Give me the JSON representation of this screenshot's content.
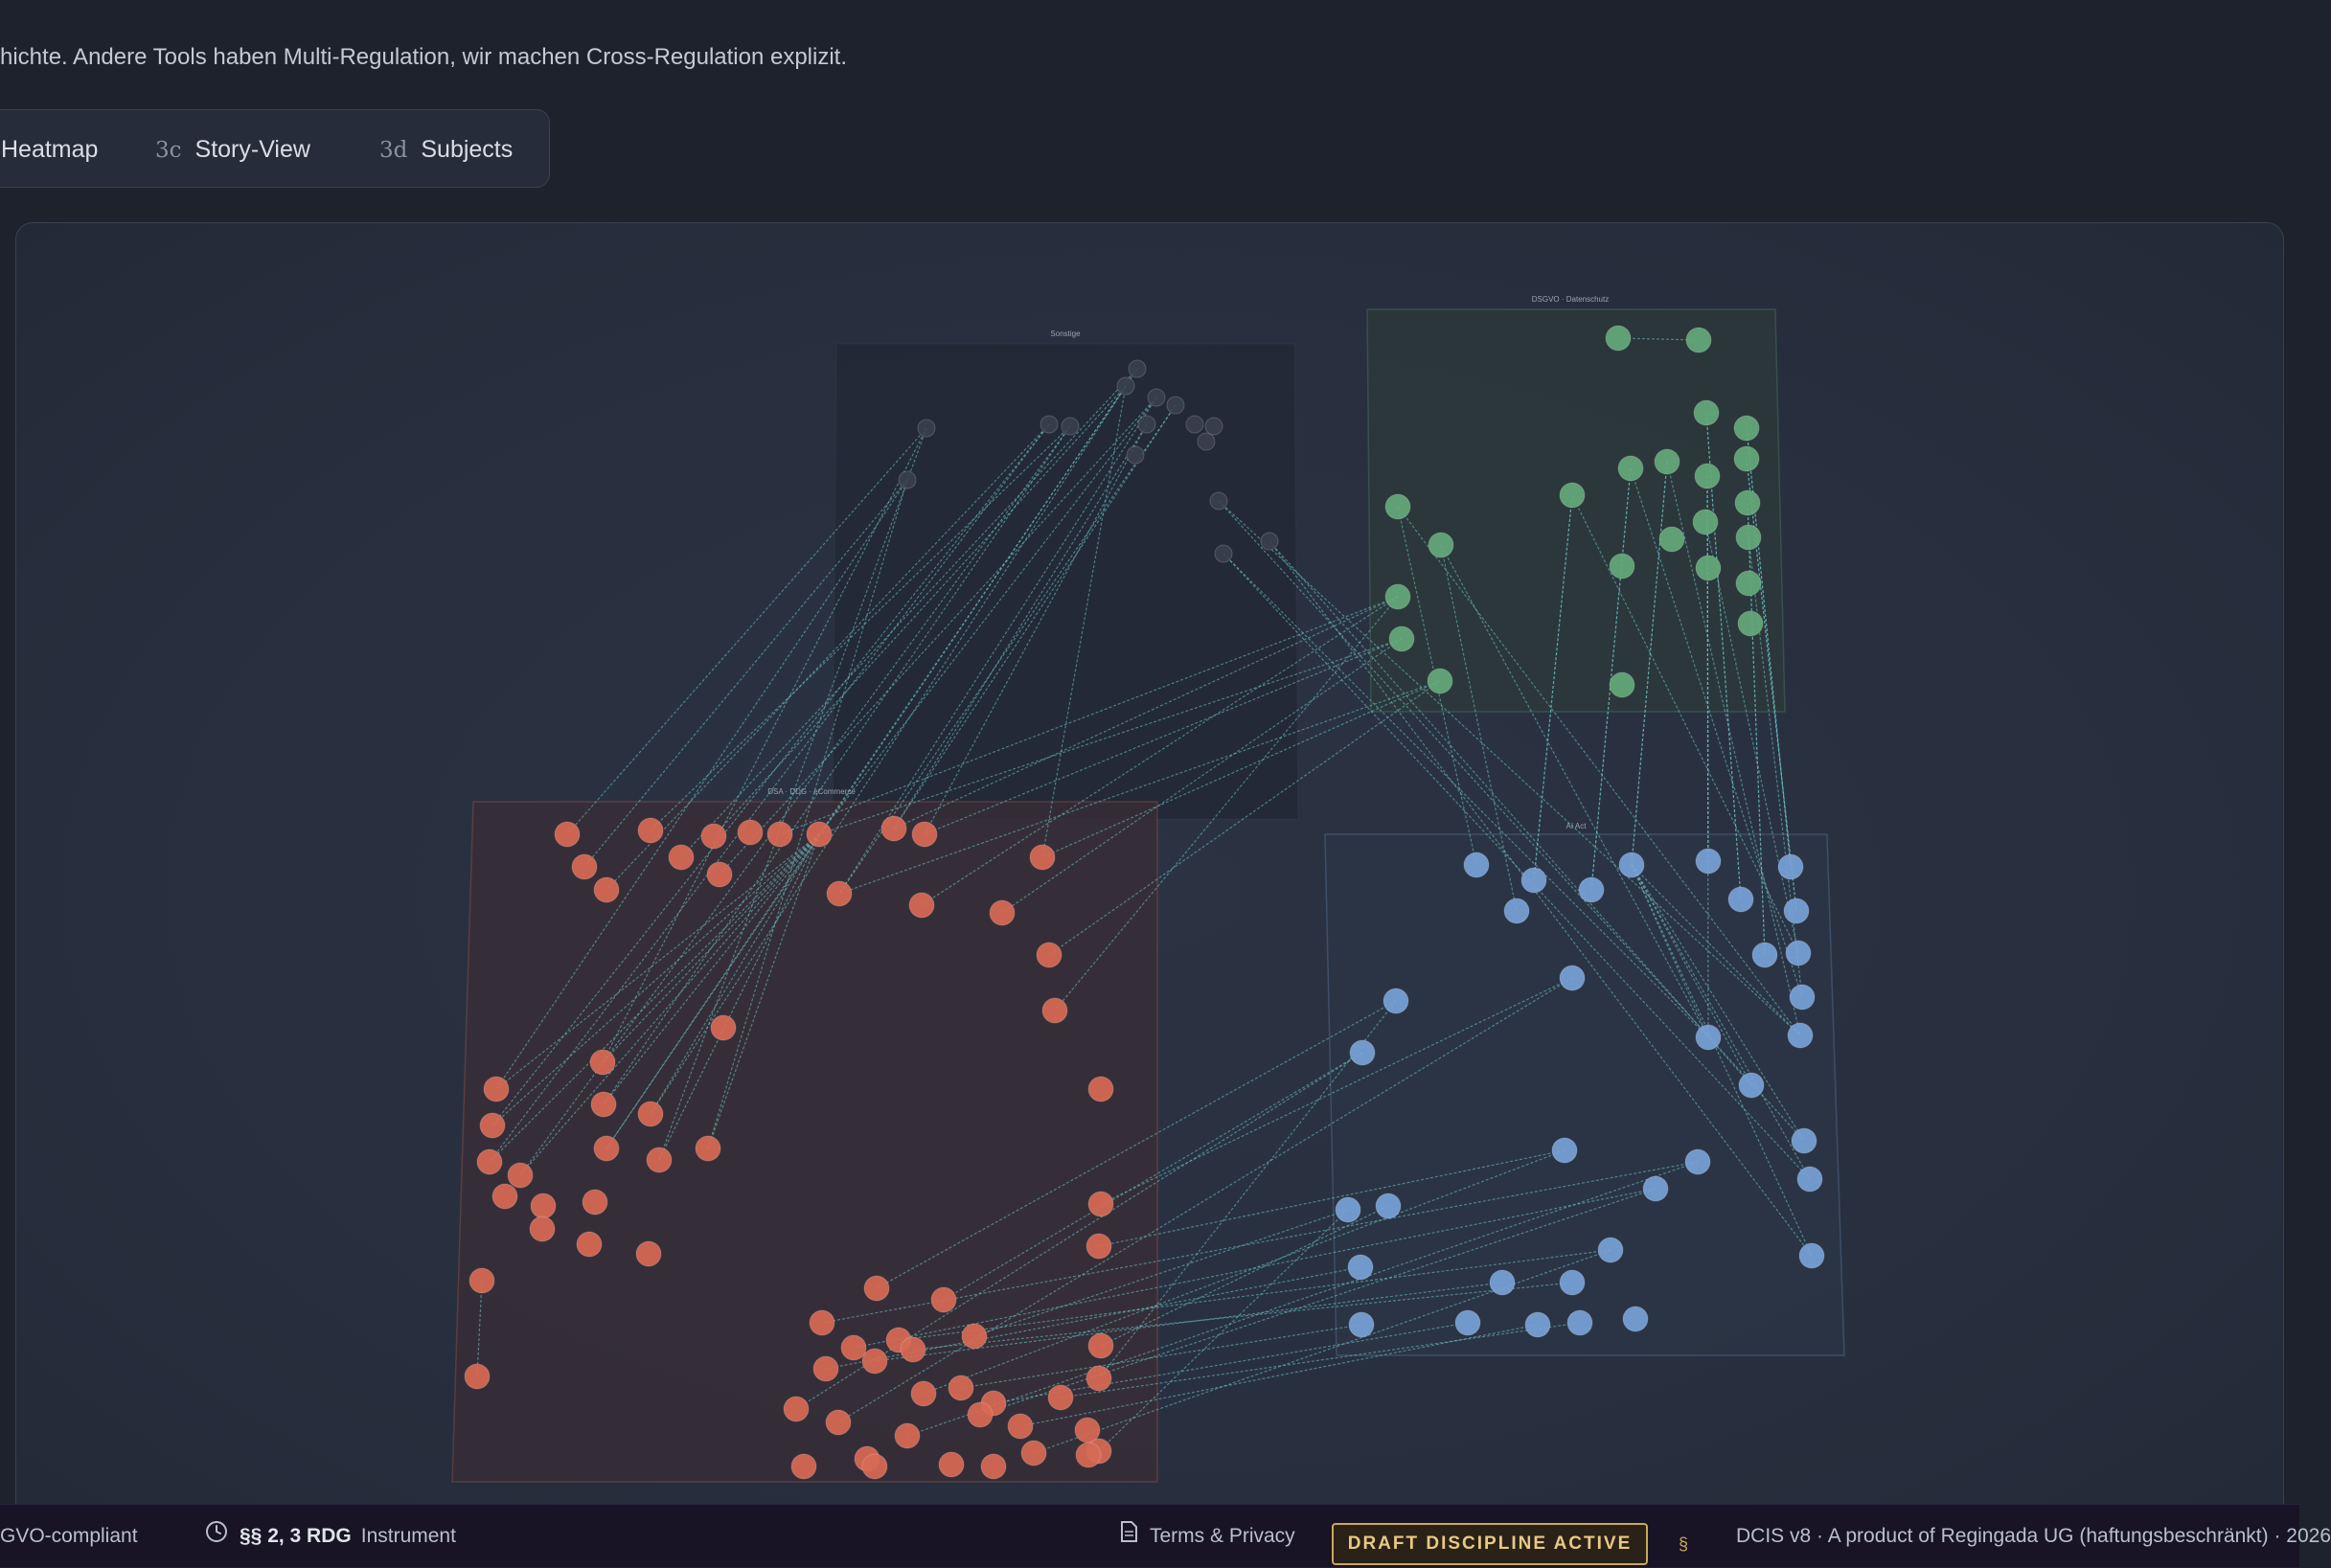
{
  "header": {
    "intro_text": "hichte. Andere Tools haben Multi-Regulation, wir machen Cross-Regulation explizit."
  },
  "tabs": [
    {
      "num": "",
      "label": "Heatmap"
    },
    {
      "num": "3c",
      "label": "Story-View"
    },
    {
      "num": "3d",
      "label": "Subjects"
    }
  ],
  "graph": {
    "clusters": [
      {
        "id": "sonstige",
        "label": "Sonstige",
        "color": "#3a3f4c",
        "fill": "#222733"
      },
      {
        "id": "dsgvo",
        "label": "DSGVO · Datenschutz",
        "color": "#64a97a",
        "fill": "#2c3a3a"
      },
      {
        "id": "ai",
        "label": "AI Act",
        "color": "#78a2d8",
        "fill": "#2c3546"
      },
      {
        "id": "dsa",
        "label": "DSA · DDG · eCommerce",
        "color": "#d86a55",
        "fill": "#3a2e36"
      }
    ],
    "edge_color": "#6fc5c8"
  },
  "footer": {
    "gdpr": "GVO-compliant",
    "rdg_strong": "§§ 2, 3 RDG",
    "rdg_text": "Instrument",
    "terms": "Terms & Privacy",
    "badge": "DRAFT DISCIPLINE ACTIVE",
    "sign": "§",
    "product": "DCIS v8 · A product of Regingada UG (haftungsbeschränkt) · 2026"
  },
  "icons": {
    "clock": "clock-icon",
    "document": "document-icon"
  }
}
